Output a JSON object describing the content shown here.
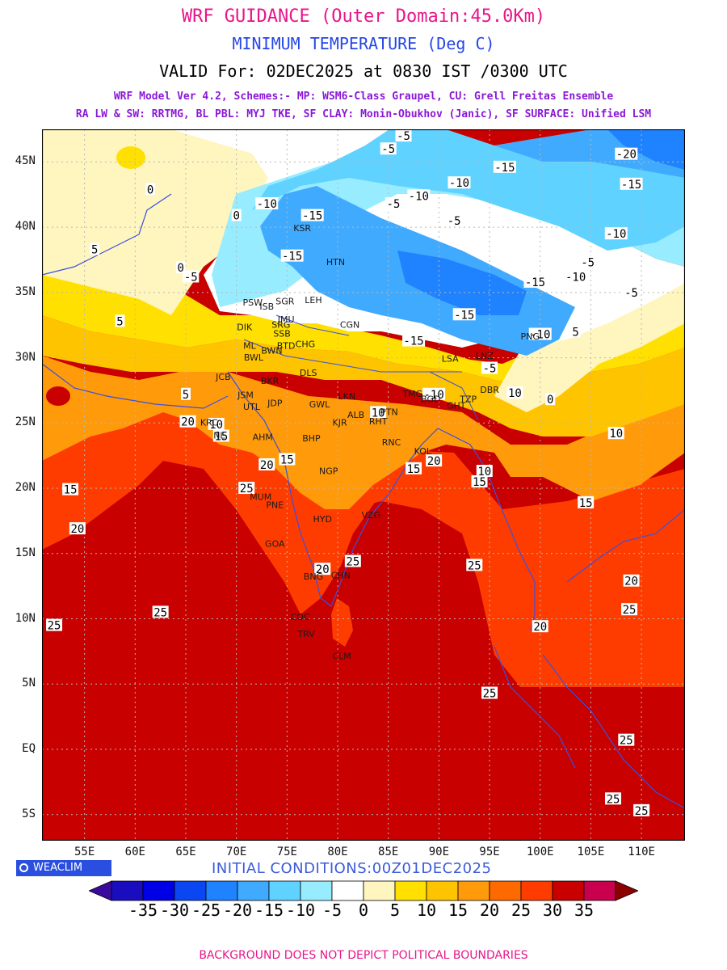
{
  "header": {
    "title": "WRF GUIDANCE (Outer Domain:45.0Km)",
    "variable": "MINIMUM TEMPERATURE (Deg C)",
    "valid": "VALID For: 02DEC2025 at 0830 IST /0300 UTC",
    "model_line1": "WRF Model Ver 4.2, Schemes:- MP: WSM6-Class Graupel, CU: Grell Freitas Ensemble",
    "model_line2": "RA LW & SW: RRTMG, BL PBL: MYJ TKE, SF CLAY: Monin-Obukhov (Janic), SF SURFACE: Unified LSM"
  },
  "map": {
    "lat_labels": [
      "45N",
      "40N",
      "35N",
      "30N",
      "25N",
      "20N",
      "15N",
      "10N",
      "5N",
      "EQ",
      "5S"
    ],
    "lon_labels": [
      "55E",
      "60E",
      "65E",
      "70E",
      "75E",
      "80E",
      "85E",
      "90E",
      "95E",
      "100E",
      "105E",
      "110E"
    ],
    "lat_range": [
      -7,
      47.5
    ],
    "lon_range": [
      50.8,
      114.3
    ],
    "contour_labels": [
      {
        "text": "-20",
        "lon": 108.5,
        "lat": 45.6
      },
      {
        "text": "-15",
        "lon": 96.5,
        "lat": 44.6
      },
      {
        "text": "-15",
        "lon": 109,
        "lat": 43.3
      },
      {
        "text": "-10",
        "lon": 92,
        "lat": 43.4
      },
      {
        "text": "-10",
        "lon": 88,
        "lat": 42.4
      },
      {
        "text": "-10",
        "lon": 73,
        "lat": 41.8
      },
      {
        "text": "-5",
        "lon": 85.5,
        "lat": 41.8
      },
      {
        "text": "-5",
        "lon": 91.5,
        "lat": 40.5
      },
      {
        "text": "-5",
        "lon": 86.5,
        "lat": 47
      },
      {
        "text": "-5",
        "lon": 85,
        "lat": 46
      },
      {
        "text": "-15",
        "lon": 77.5,
        "lat": 40.9
      },
      {
        "text": "-15",
        "lon": 75.5,
        "lat": 37.8
      },
      {
        "text": "-10",
        "lon": 107.5,
        "lat": 39.5
      },
      {
        "text": "-5",
        "lon": 104.7,
        "lat": 37.3
      },
      {
        "text": "-10",
        "lon": 103.5,
        "lat": 36.2
      },
      {
        "text": "-15",
        "lon": 99.5,
        "lat": 35.8
      },
      {
        "text": "-5",
        "lon": 109,
        "lat": 35
      },
      {
        "text": "-15",
        "lon": 92.5,
        "lat": 33.3
      },
      {
        "text": "-15",
        "lon": 87.5,
        "lat": 31.3
      },
      {
        "text": "-10",
        "lon": 100,
        "lat": 31.8
      },
      {
        "text": "-5",
        "lon": 95,
        "lat": 29.2
      },
      {
        "text": "-10",
        "lon": 89.5,
        "lat": 27.2
      },
      {
        "text": "-5",
        "lon": 65.5,
        "lat": 36.2
      },
      {
        "text": "0",
        "lon": 64.5,
        "lat": 36.9
      },
      {
        "text": "0",
        "lon": 61.5,
        "lat": 42.9
      },
      {
        "text": "0",
        "lon": 70,
        "lat": 40.9
      },
      {
        "text": "5",
        "lon": 56,
        "lat": 38.3
      },
      {
        "text": "5",
        "lon": 58.5,
        "lat": 32.8
      },
      {
        "text": "5",
        "lon": 65,
        "lat": 27.2
      },
      {
        "text": "5",
        "lon": 103.5,
        "lat": 32
      },
      {
        "text": "0",
        "lon": 101,
        "lat": 26.8
      },
      {
        "text": "10",
        "lon": 97.5,
        "lat": 27.3
      },
      {
        "text": "10",
        "lon": 84,
        "lat": 25.8
      },
      {
        "text": "10",
        "lon": 68,
        "lat": 24.9
      },
      {
        "text": "15",
        "lon": 68.5,
        "lat": 24
      },
      {
        "text": "15",
        "lon": 75,
        "lat": 22.2
      },
      {
        "text": "20",
        "lon": 73,
        "lat": 21.8
      },
      {
        "text": "20",
        "lon": 65.2,
        "lat": 25.1
      },
      {
        "text": "20",
        "lon": 89.5,
        "lat": 22.1
      },
      {
        "text": "15",
        "lon": 87.5,
        "lat": 21.5
      },
      {
        "text": "10",
        "lon": 94.5,
        "lat": 21.3
      },
      {
        "text": "15",
        "lon": 94,
        "lat": 20.5
      },
      {
        "text": "10",
        "lon": 107.5,
        "lat": 24.2
      },
      {
        "text": "15",
        "lon": 104.5,
        "lat": 18.9
      },
      {
        "text": "25",
        "lon": 71,
        "lat": 20
      },
      {
        "text": "15",
        "lon": 53.6,
        "lat": 19.9
      },
      {
        "text": "20",
        "lon": 54.3,
        "lat": 16.9
      },
      {
        "text": "20",
        "lon": 78.5,
        "lat": 13.8
      },
      {
        "text": "25",
        "lon": 81.5,
        "lat": 14.4
      },
      {
        "text": "25",
        "lon": 93.5,
        "lat": 14.1
      },
      {
        "text": "20",
        "lon": 109,
        "lat": 12.9
      },
      {
        "text": "25",
        "lon": 108.8,
        "lat": 10.7
      },
      {
        "text": "20",
        "lon": 100,
        "lat": 9.4
      },
      {
        "text": "25",
        "lon": 62.5,
        "lat": 10.5
      },
      {
        "text": "25",
        "lon": 52,
        "lat": 9.5
      },
      {
        "text": "25",
        "lon": 95,
        "lat": 4.3
      },
      {
        "text": "25",
        "lon": 108.5,
        "lat": 0.7
      },
      {
        "text": "25",
        "lon": 107.2,
        "lat": -3.8
      },
      {
        "text": "25",
        "lon": 110,
        "lat": -4.7
      }
    ],
    "stations": [
      {
        "name": "KSR",
        "lon": 76.5,
        "lat": 39.7
      },
      {
        "name": "HTN",
        "lon": 79.8,
        "lat": 37.1
      },
      {
        "name": "CGN",
        "lon": 81.2,
        "lat": 32.3
      },
      {
        "name": "LSA",
        "lon": 91.1,
        "lat": 29.7
      },
      {
        "name": "LNZ",
        "lon": 94.5,
        "lat": 29.9
      },
      {
        "name": "PNG",
        "lon": 99,
        "lat": 31.4
      },
      {
        "name": "DIK",
        "lon": 70.8,
        "lat": 32.1
      },
      {
        "name": "SRG",
        "lon": 74.4,
        "lat": 32.3
      },
      {
        "name": "SSB",
        "lon": 74.5,
        "lat": 31.6
      },
      {
        "name": "ML",
        "lon": 71.3,
        "lat": 30.7
      },
      {
        "name": "BWL",
        "lon": 71.7,
        "lat": 29.8
      },
      {
        "name": "BWN",
        "lon": 73.5,
        "lat": 30.3
      },
      {
        "name": "BTD",
        "lon": 74.9,
        "lat": 30.7
      },
      {
        "name": "CHG",
        "lon": 76.8,
        "lat": 30.8
      },
      {
        "name": "DLS",
        "lon": 77.1,
        "lat": 28.6
      },
      {
        "name": "JCB",
        "lon": 68.7,
        "lat": 28.3
      },
      {
        "name": "BKR",
        "lon": 73.3,
        "lat": 28
      },
      {
        "name": "JSM",
        "lon": 70.9,
        "lat": 26.9
      },
      {
        "name": "UTL",
        "lon": 71.5,
        "lat": 26
      },
      {
        "name": "JDP",
        "lon": 73.8,
        "lat": 26.3
      },
      {
        "name": "GWL",
        "lon": 78.2,
        "lat": 26.2
      },
      {
        "name": "LKN",
        "lon": 80.9,
        "lat": 26.8
      },
      {
        "name": "ALB",
        "lon": 81.8,
        "lat": 25.4
      },
      {
        "name": "KJR",
        "lon": 80.2,
        "lat": 24.8
      },
      {
        "name": "PTN",
        "lon": 85.1,
        "lat": 25.6
      },
      {
        "name": "RHT",
        "lon": 84,
        "lat": 24.9
      },
      {
        "name": "KRC",
        "lon": 67.3,
        "lat": 24.8
      },
      {
        "name": "NL",
        "lon": 68.3,
        "lat": 23.8
      },
      {
        "name": "AHM",
        "lon": 72.6,
        "lat": 23.7
      },
      {
        "name": "BHP",
        "lon": 77.4,
        "lat": 23.6
      },
      {
        "name": "RNC",
        "lon": 85.3,
        "lat": 23.3
      },
      {
        "name": "KOL",
        "lon": 88.4,
        "lat": 22.6
      },
      {
        "name": "NGP",
        "lon": 79.1,
        "lat": 21.1
      },
      {
        "name": "MUM",
        "lon": 72.4,
        "lat": 19.1
      },
      {
        "name": "PNE",
        "lon": 73.8,
        "lat": 18.5
      },
      {
        "name": "HYD",
        "lon": 78.5,
        "lat": 17.4
      },
      {
        "name": "VZG",
        "lon": 83.3,
        "lat": 17.7
      },
      {
        "name": "GOA",
        "lon": 73.8,
        "lat": 15.5
      },
      {
        "name": "BNG",
        "lon": 77.6,
        "lat": 13
      },
      {
        "name": "CHN",
        "lon": 80.3,
        "lat": 13.1
      },
      {
        "name": "COC",
        "lon": 76.3,
        "lat": 9.9
      },
      {
        "name": "TRV",
        "lon": 76.9,
        "lat": 8.6
      },
      {
        "name": "CLM",
        "lon": 80.4,
        "lat": 6.9
      },
      {
        "name": "DBR",
        "lon": 95,
        "lat": 27.3
      },
      {
        "name": "TZP",
        "lon": 92.9,
        "lat": 26.6
      },
      {
        "name": "GHT",
        "lon": 91.7,
        "lat": 26.1
      },
      {
        "name": "BGD",
        "lon": 89.2,
        "lat": 26.6
      },
      {
        "name": "TMG",
        "lon": 87.4,
        "lat": 27
      },
      {
        "name": "SGR",
        "lon": 74.8,
        "lat": 34.1
      },
      {
        "name": "PSW",
        "lon": 71.6,
        "lat": 34
      },
      {
        "name": "ISB",
        "lon": 73,
        "lat": 33.7
      },
      {
        "name": "LEH",
        "lon": 77.6,
        "lat": 34.2
      },
      {
        "name": "JMU",
        "lon": 74.9,
        "lat": 32.7
      }
    ]
  },
  "logo_text": "WEACLIM",
  "initial_conditions": "INITIAL CONDITIONS:00Z01DEC2025",
  "colorbar": {
    "labels": [
      "-35",
      "-30",
      "-25",
      "-20",
      "-15",
      "-10",
      "-5",
      "0",
      "5",
      "10",
      "15",
      "20",
      "25",
      "30",
      "35"
    ],
    "colors": [
      "#3a0a9e",
      "#1a0dbf",
      "#0000e6",
      "#0a46f2",
      "#1f82ff",
      "#40aaff",
      "#60d2ff",
      "#98ecff",
      "#ffffff",
      "#fff5be",
      "#ffe000",
      "#ffc400",
      "#ff9a0a",
      "#ff6a00",
      "#ff3c00",
      "#c80000",
      "#c8004e",
      "#8c0000"
    ]
  },
  "footer": "BACKGROUND DOES NOT DEPICT POLITICAL BOUNDARIES"
}
